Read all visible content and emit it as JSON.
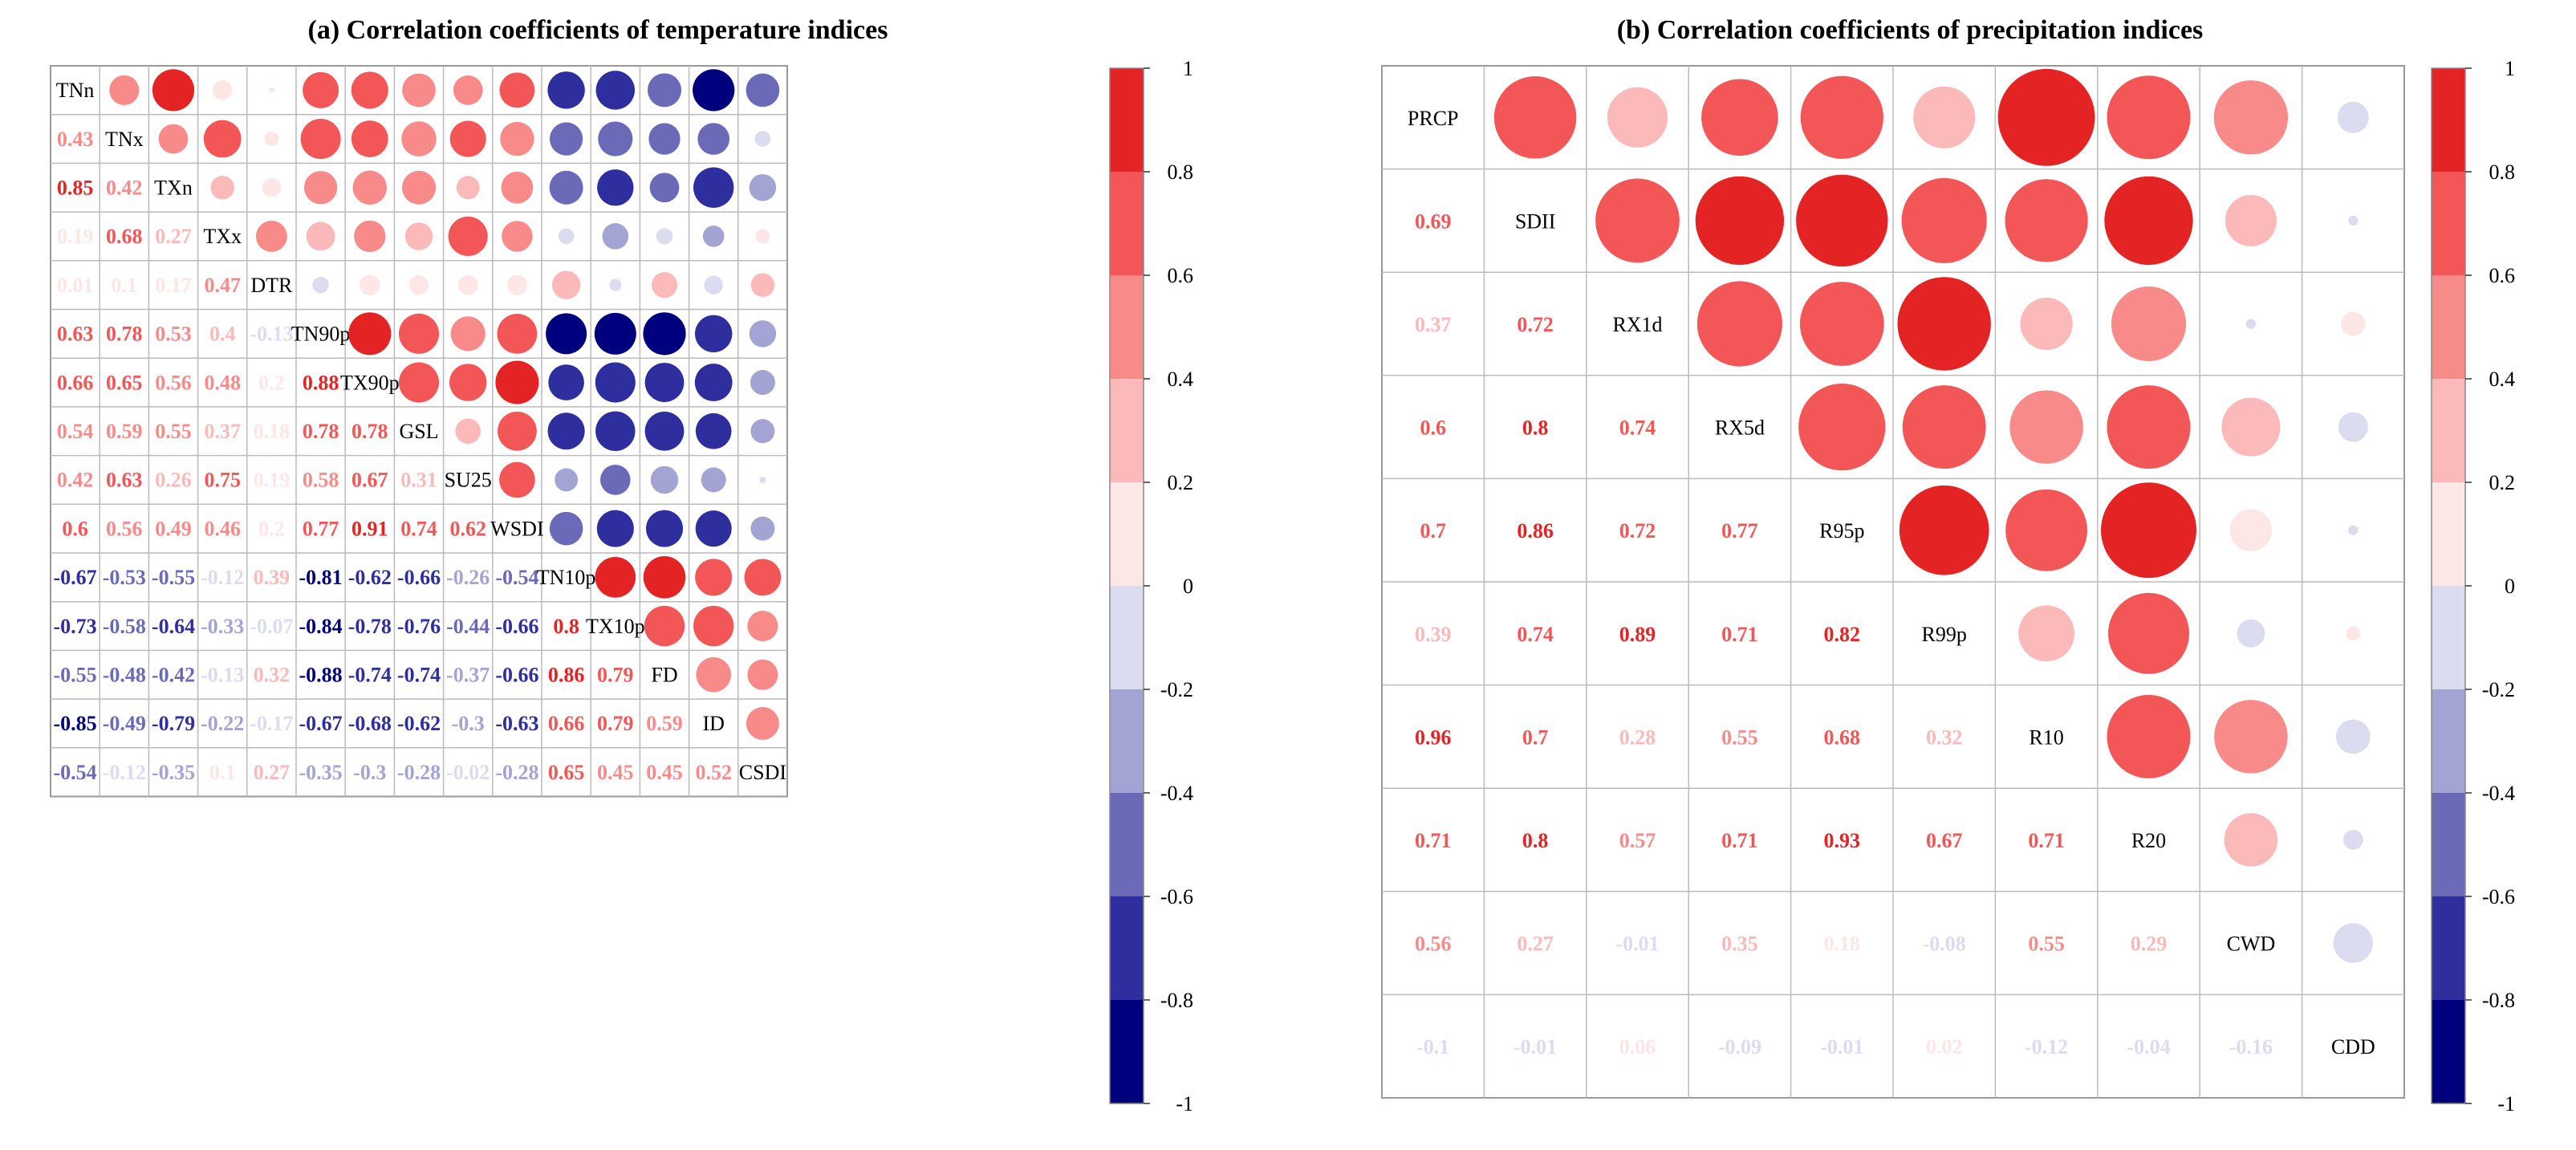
{
  "chart_data": [
    {
      "type": "heatmap",
      "subtype": "correlation-matrix",
      "title": "(a) Correlation coefficients of temperature indices",
      "labels": [
        "TNn",
        "TNx",
        "TXn",
        "TXx",
        "DTR",
        "TN90p",
        "TX90p",
        "GSL",
        "SU25",
        "WSDI",
        "TN10p",
        "TX10p",
        "FD",
        "ID",
        "CSDI"
      ],
      "lower_triangle": [
        [],
        [
          0.43
        ],
        [
          0.85,
          0.42
        ],
        [
          0.19,
          0.68,
          0.27
        ],
        [
          0.01,
          0.1,
          0.17,
          0.47
        ],
        [
          0.63,
          0.78,
          0.53,
          0.4,
          -0.13
        ],
        [
          0.66,
          0.65,
          0.56,
          0.48,
          0.2,
          0.88
        ],
        [
          0.54,
          0.59,
          0.55,
          0.37,
          0.18,
          0.78,
          0.78
        ],
        [
          0.42,
          0.63,
          0.26,
          0.75,
          0.19,
          0.58,
          0.67,
          0.31
        ],
        [
          0.6,
          0.56,
          0.49,
          0.46,
          0.2,
          0.77,
          0.91,
          0.74,
          0.62
        ],
        [
          -0.67,
          -0.53,
          -0.55,
          -0.12,
          0.39,
          -0.81,
          -0.62,
          -0.66,
          -0.26,
          -0.54
        ],
        [
          -0.73,
          -0.58,
          -0.64,
          -0.33,
          -0.07,
          -0.84,
          -0.78,
          -0.76,
          -0.44,
          -0.66,
          0.8
        ],
        [
          -0.55,
          -0.48,
          -0.42,
          -0.13,
          0.32,
          -0.88,
          -0.74,
          -0.74,
          -0.37,
          -0.66,
          0.86,
          0.79
        ],
        [
          -0.85,
          -0.49,
          -0.79,
          -0.22,
          -0.17,
          -0.67,
          -0.68,
          -0.62,
          -0.3,
          -0.63,
          0.66,
          0.79,
          0.59
        ],
        [
          -0.54,
          -0.12,
          -0.35,
          0.1,
          0.27,
          -0.35,
          -0.3,
          -0.28,
          -0.02,
          -0.28,
          0.65,
          0.45,
          0.45,
          0.52
        ]
      ],
      "colorbar_ticks": [
        "1",
        "0.8",
        "0.6",
        "0.4",
        "0.2",
        "0",
        "-0.2",
        "-0.4",
        "-0.6",
        "-0.8",
        "-1"
      ],
      "value_range": [
        -1,
        1
      ]
    },
    {
      "type": "heatmap",
      "subtype": "correlation-matrix",
      "title": "(b) Correlation coefficients of precipitation indices",
      "labels": [
        "PRCP",
        "SDII",
        "RX1d",
        "RX5d",
        "R95p",
        "R99p",
        "R10",
        "R20",
        "CWD",
        "CDD"
      ],
      "lower_triangle": [
        [],
        [
          0.69
        ],
        [
          0.37,
          0.72
        ],
        [
          0.6,
          0.8,
          0.74
        ],
        [
          0.7,
          0.86,
          0.72,
          0.77
        ],
        [
          0.39,
          0.74,
          0.89,
          0.71,
          0.82
        ],
        [
          0.96,
          0.7,
          0.28,
          0.55,
          0.68,
          0.32
        ],
        [
          0.71,
          0.8,
          0.57,
          0.71,
          0.93,
          0.67,
          0.71
        ],
        [
          0.56,
          0.27,
          -0.01,
          0.35,
          0.18,
          -0.08,
          0.55,
          0.29
        ],
        [
          -0.1,
          -0.01,
          0.06,
          -0.09,
          -0.01,
          0.02,
          -0.12,
          -0.04,
          -0.16
        ]
      ],
      "colorbar_ticks": [
        "1",
        "0.8",
        "0.6",
        "0.4",
        "0.2",
        "0",
        "-0.2",
        "-0.4",
        "-0.6",
        "-0.8",
        "-1"
      ],
      "value_range": [
        -1,
        1
      ]
    }
  ],
  "colors": {
    "palette_negative_to_positive": [
      "#00007f",
      "#2e2e9e",
      "#6a6ab8",
      "#a4a4d4",
      "#dcdcf0",
      "#fde6e6",
      "#fbb9b9",
      "#f88a8a",
      "#f25656",
      "#e42424"
    ],
    "grid_line": "#bbbbbb",
    "frame": "#999999"
  }
}
